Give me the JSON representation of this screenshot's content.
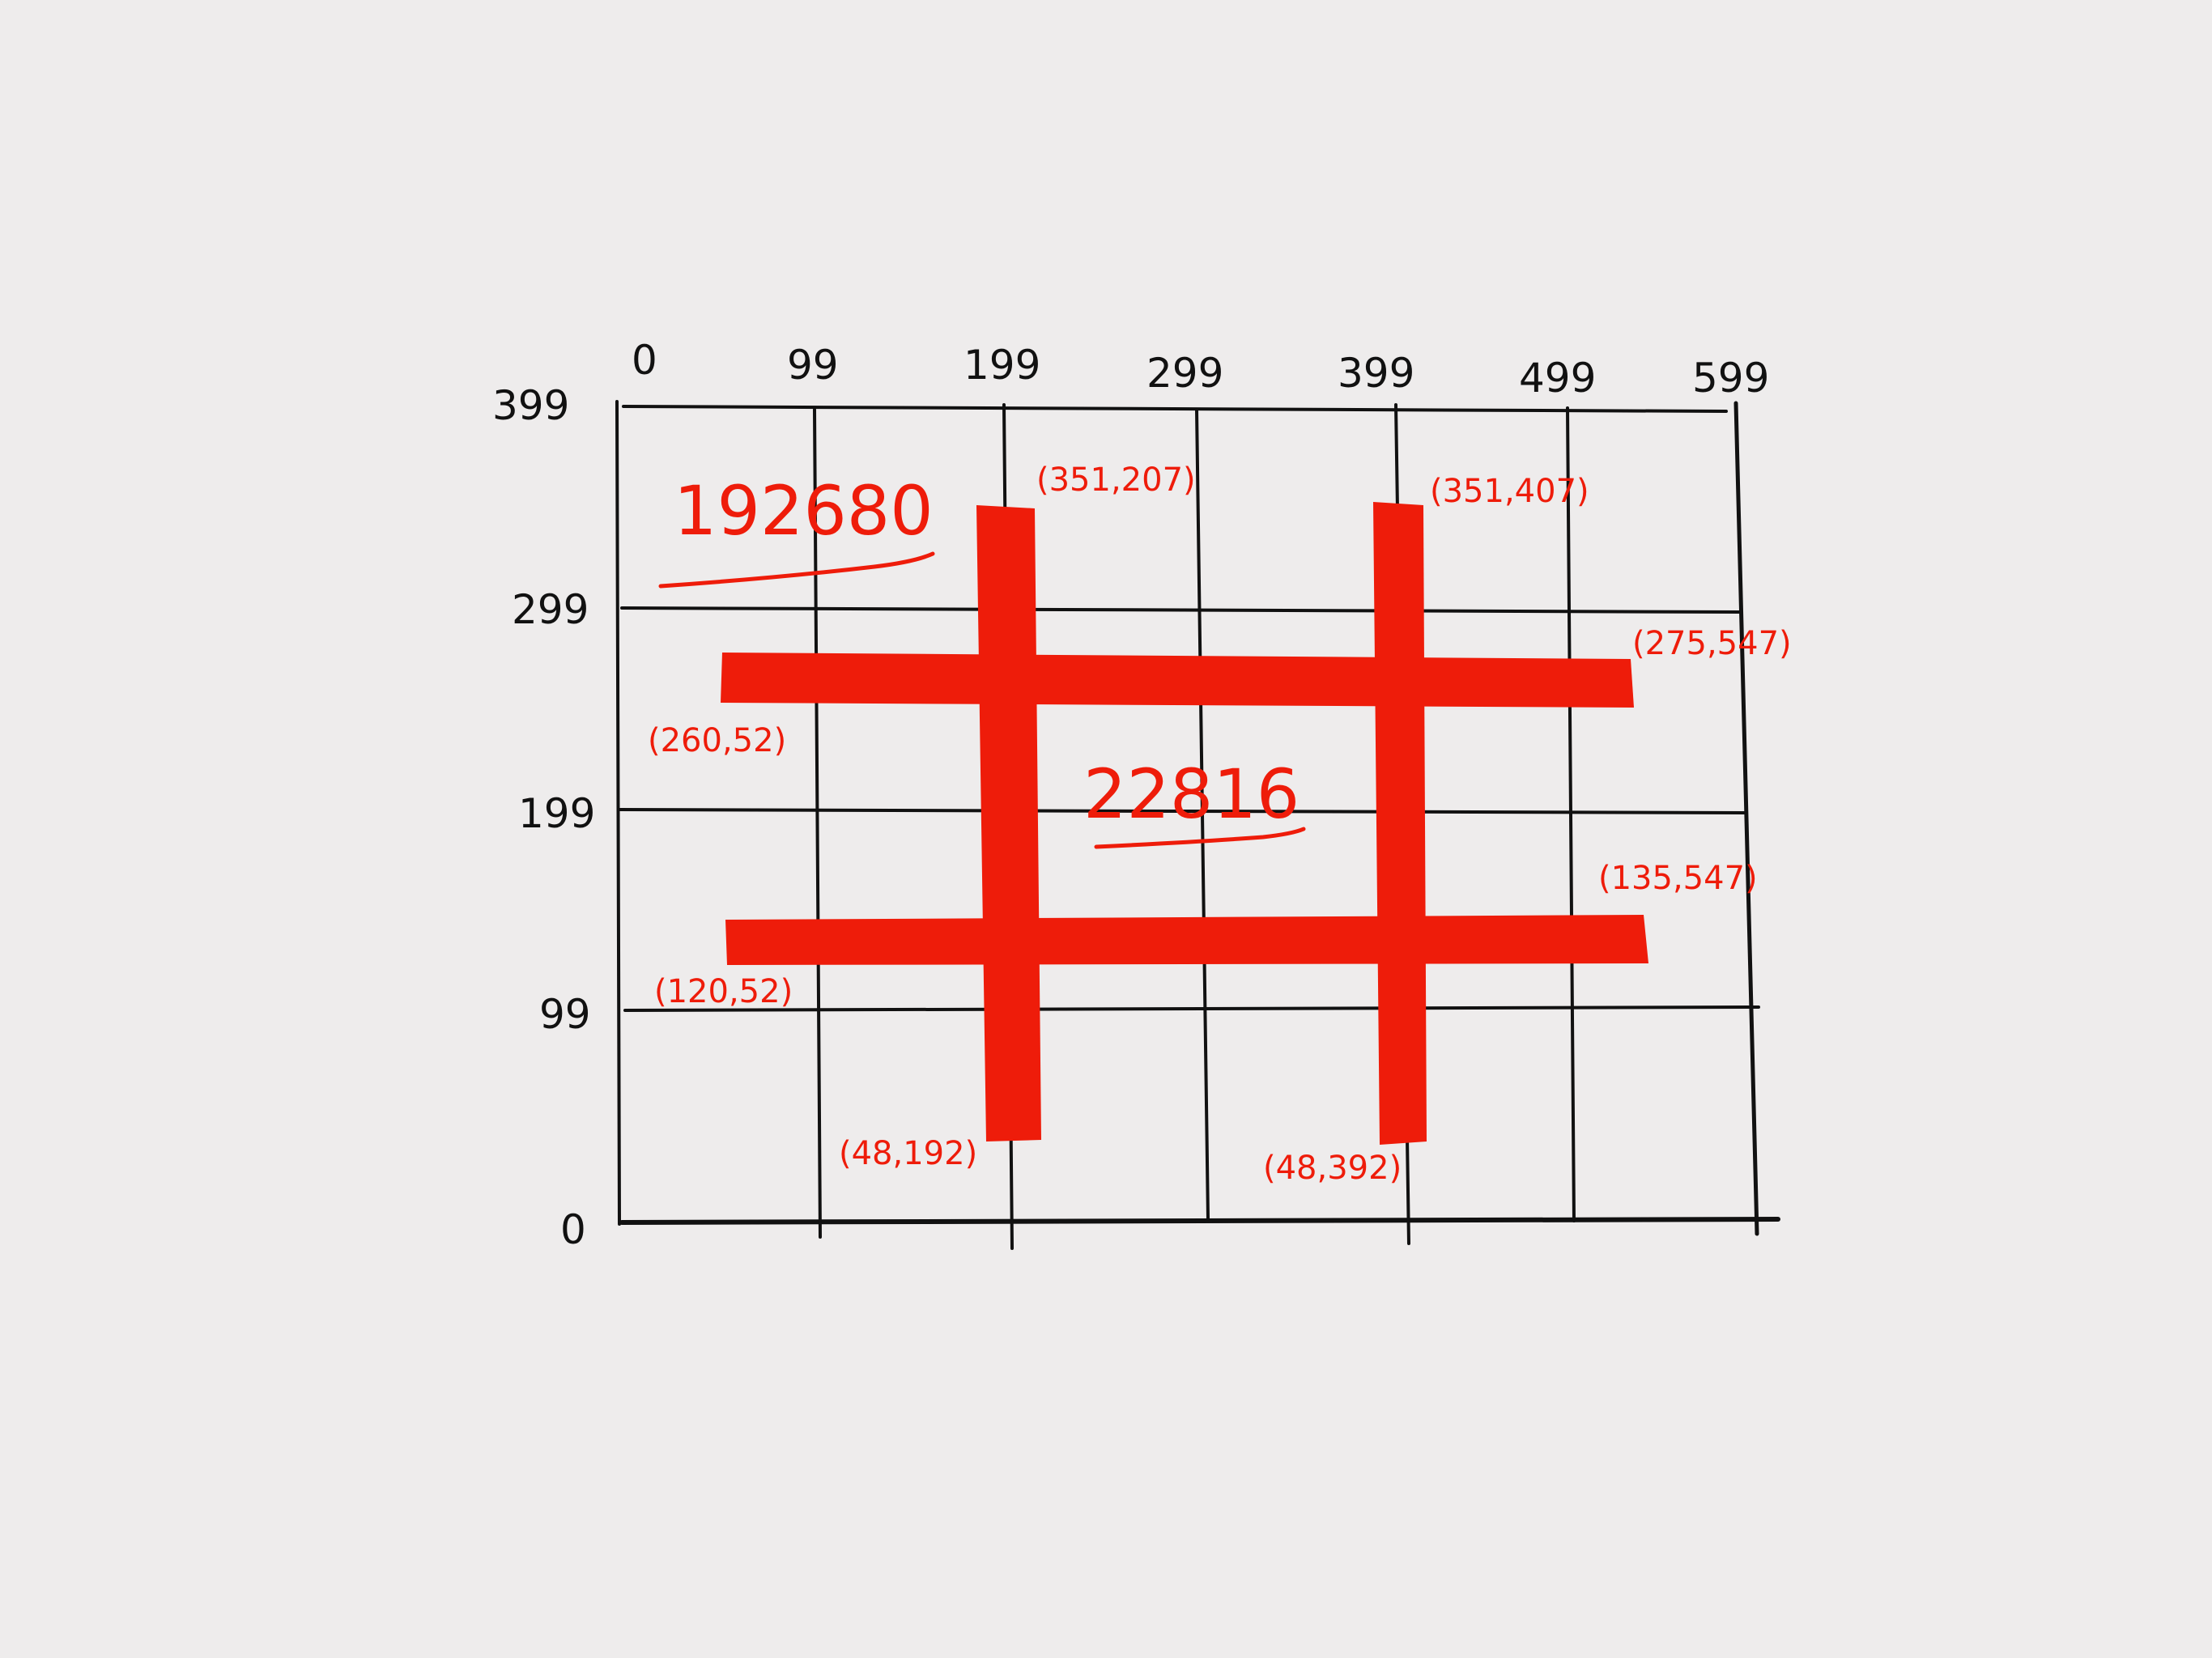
{
  "colors": {
    "background": "#eeecec",
    "ink": "#111111",
    "accent": "#ee1c0a"
  },
  "axes": {
    "x_ticks": [
      "0",
      "99",
      "199",
      "299",
      "399",
      "499",
      "599"
    ],
    "y_ticks": [
      "399",
      "299",
      "199",
      "99",
      "0"
    ]
  },
  "bars": [
    {
      "orientation": "vertical",
      "start_label": "(351,207)",
      "end_label": "(48,192)"
    },
    {
      "orientation": "vertical",
      "start_label": "(351,407)",
      "end_label": "(48,392)"
    },
    {
      "orientation": "horizontal",
      "start_label": "(260,52)",
      "end_label": "(275,547)"
    },
    {
      "orientation": "horizontal",
      "start_label": "(120,52)",
      "end_label": "(135,547)"
    }
  ],
  "totals": {
    "outer": "192680",
    "inner": "22816"
  }
}
